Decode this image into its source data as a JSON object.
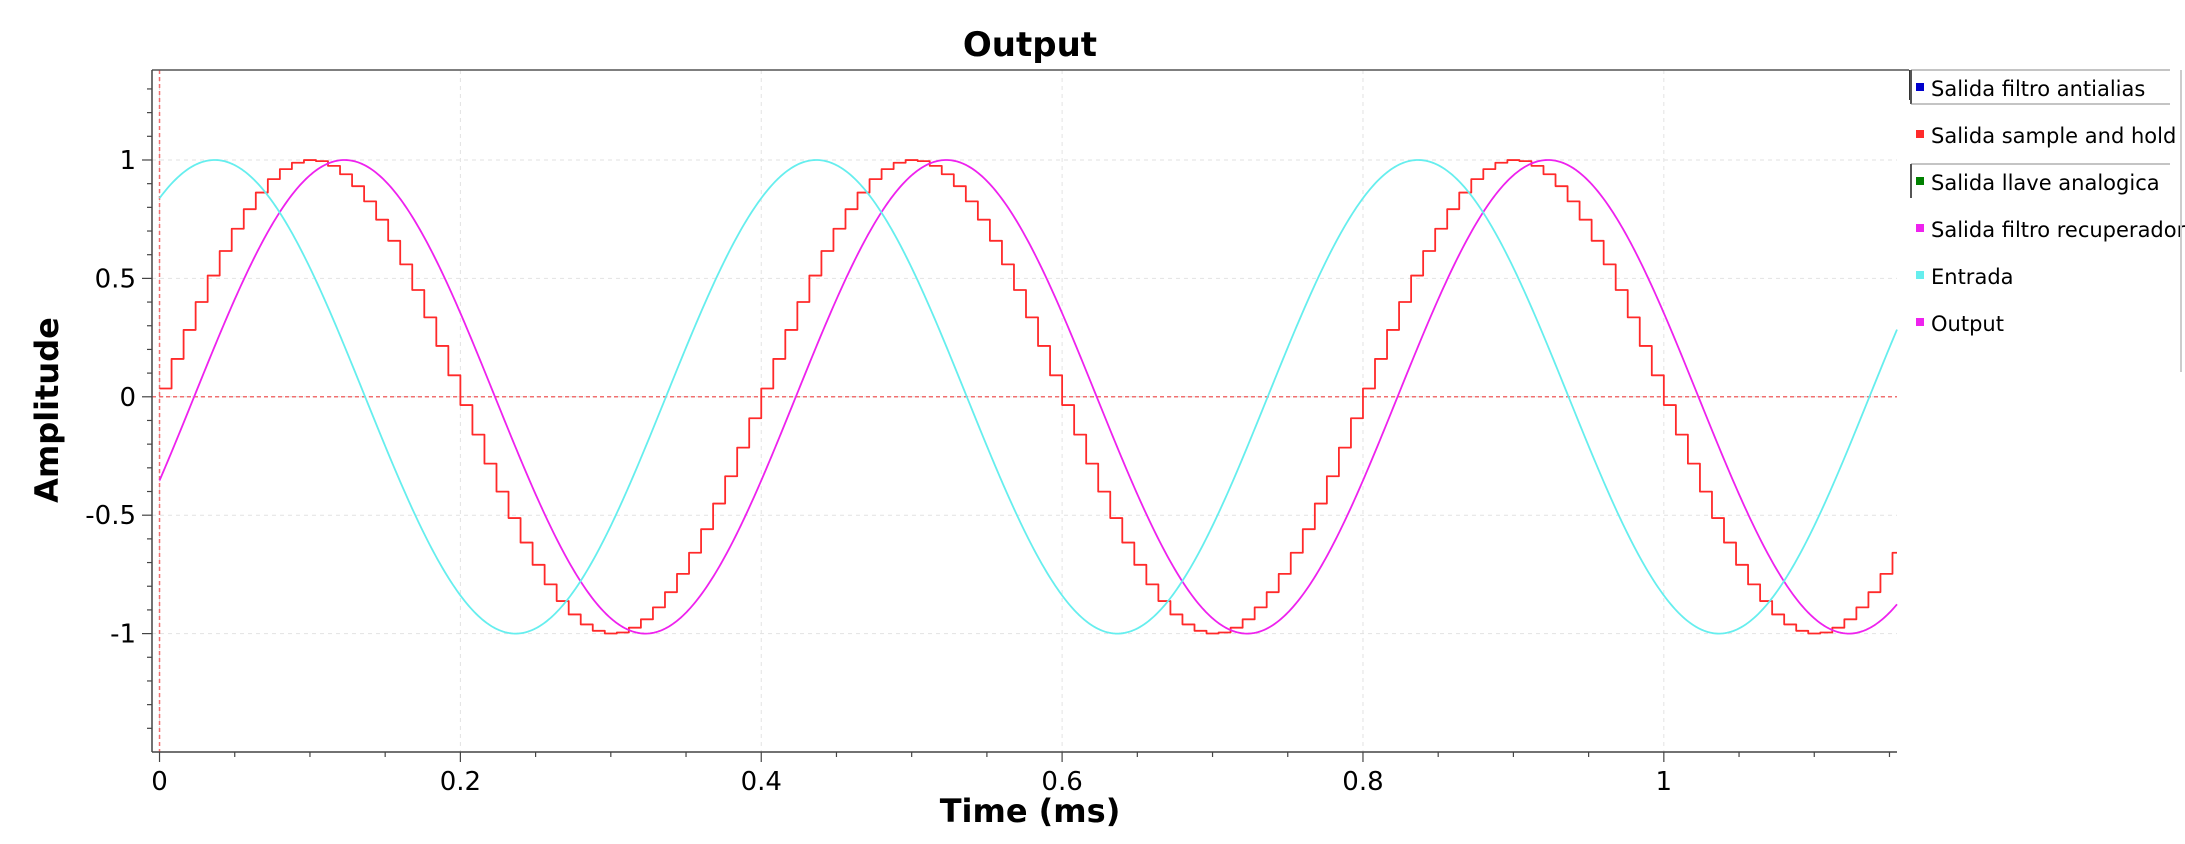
{
  "chart_data": {
    "type": "line",
    "title": "Output",
    "xlabel": "Time (ms)",
    "ylabel": "Amplitude",
    "xlim": [
      -0.005,
      1.155
    ],
    "ylim": [
      -1.5,
      1.38
    ],
    "xticks": [
      0,
      0.2,
      0.4,
      0.6,
      0.8,
      1
    ],
    "xtick_labels": [
      "0",
      "0.2",
      "0.4",
      "0.6",
      "0.8",
      "1"
    ],
    "yticks": [
      1,
      0.5,
      0,
      -0.5,
      -1
    ],
    "ytick_labels": [
      "1",
      "0.5",
      "0",
      "-0.5",
      "-1"
    ],
    "grid": true,
    "legend_position": "right",
    "frequency_khz": 2.5,
    "series": [
      {
        "name": "Salida filtro antialias",
        "color": "#0000cc",
        "visible": false
      },
      {
        "name": "Salida sample and hold",
        "color": "#ff2a2a",
        "visible": true,
        "kind": "staircase",
        "phase_deg": 2,
        "step_ms": 0.008,
        "x_start": 0.0,
        "x_end": 1.155
      },
      {
        "name": "Salida llave analogica",
        "color": "#008000",
        "visible": false
      },
      {
        "name": "Salida filtro recuperador",
        "color": "#ee22ee",
        "visible": true,
        "kind": "sine",
        "phase_deg": -20.7,
        "x_start": 0.0,
        "x_end": 1.155
      },
      {
        "name": "Entrada",
        "color": "#66eeee",
        "visible": true,
        "kind": "sine",
        "phase_deg": 57,
        "x_start": 0.0,
        "x_end": 1.155
      },
      {
        "name": "Output",
        "color": "#ee22ee",
        "visible": false
      }
    ]
  }
}
